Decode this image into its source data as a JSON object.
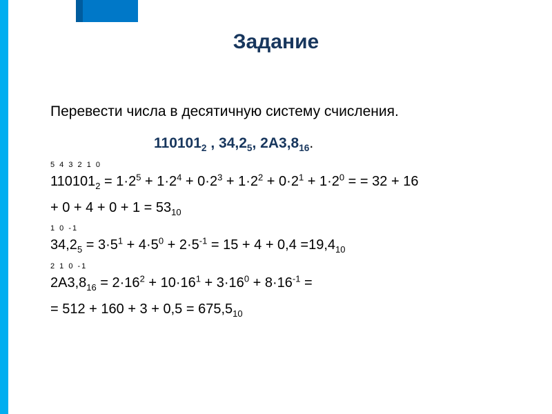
{
  "title": "Задание",
  "task": "Перевести числа в десятичную систему счисления.",
  "numbers_line": {
    "a": "1101012",
    "sep1": " , ",
    "b": "34,25",
    "sep2": ", ",
    "c": "2А3,816",
    "end": "."
  },
  "positions1": "5  4 3  2 1 0",
  "line1_a": "110101",
  "line1_a_sub": "2",
  "line1_rest": " = 1·25 + 1·24 + 0·23 + 1·22 + 0·21 + 1·20 = = 32 + 16",
  "line1_cont": "+ 0 + 4 + 0 + 1 = 53",
  "line1_cont_sub": "10",
  "positions2": " 1  0  -1",
  "line2_a": "34,2",
  "line2_a_sub": "5",
  "line2_rest": " = 3·51 + 4·50 + 2·5-1 = 15 + 4 + 0,4 =19,4",
  "line2_rest_sub": "10",
  "positions3": " 2  1  0  -1",
  "line3_a": "2А3,8",
  "line3_a_sub": "16",
  "line3_rest": " = 2·162 + 10·161 + 3·160 + 8·16-1 =",
  "line4": "= 512 + 160 + 3 + 0,5 = 675,5",
  "line4_sub": "10",
  "colors": {
    "title": "#17365d",
    "accent_bar": "#00aef0",
    "top_dark": "#005c9e",
    "top_mid": "#0078c8",
    "text": "#000000",
    "bg": "#ffffff"
  }
}
